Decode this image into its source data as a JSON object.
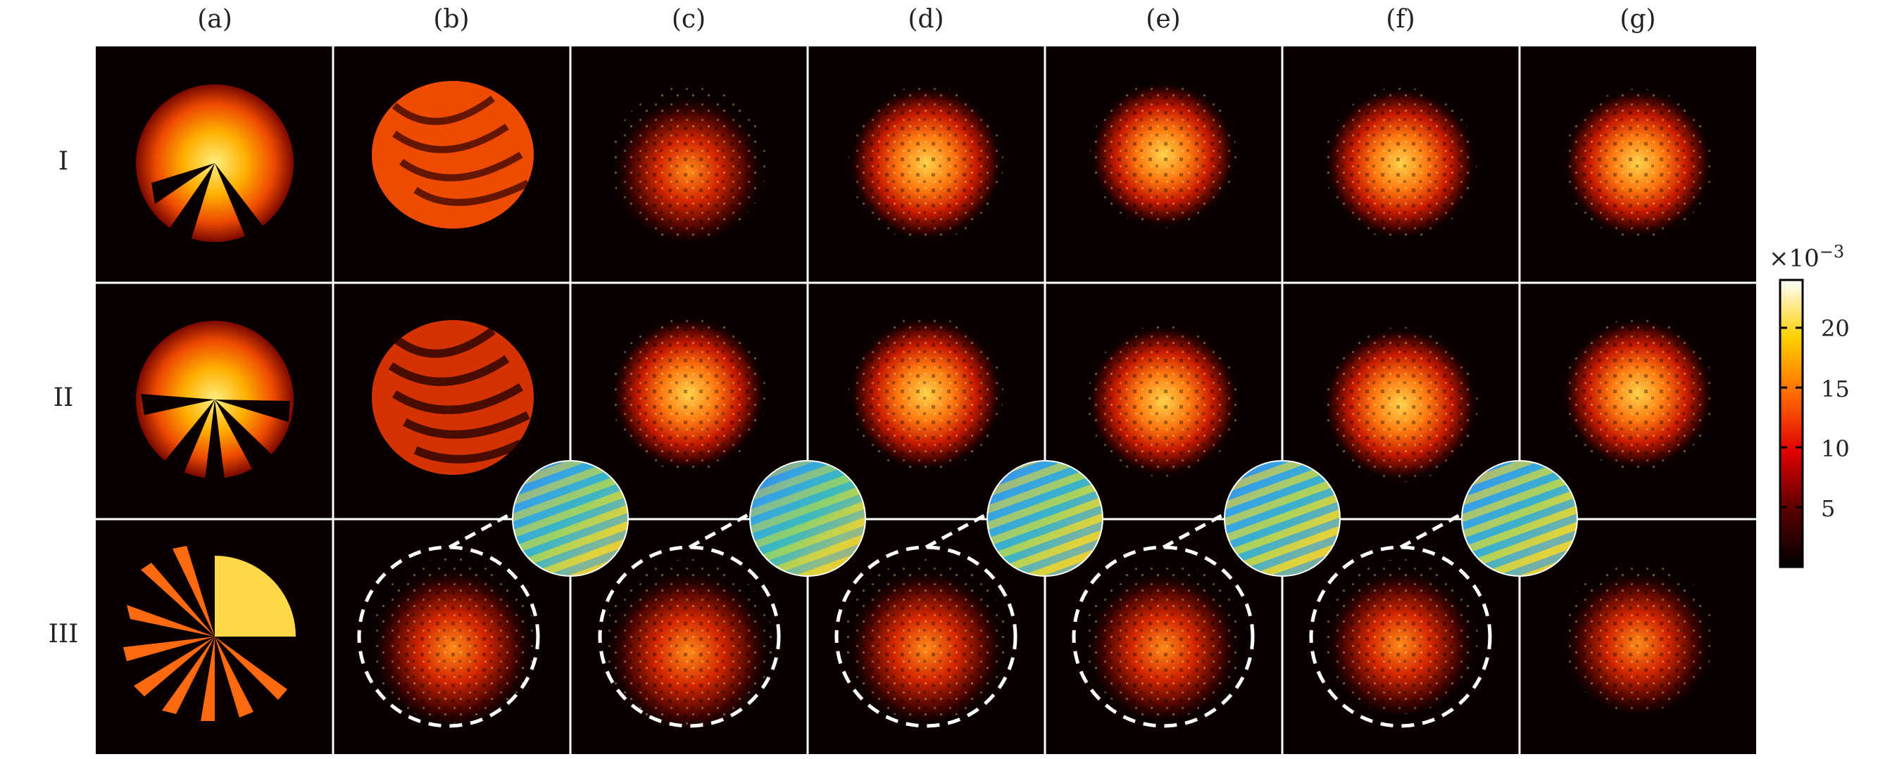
{
  "columns": [
    "(a)",
    "(b)",
    "(c)",
    "(d)",
    "(e)",
    "(f)",
    "(g)"
  ],
  "rows": [
    "I",
    "II",
    "III"
  ],
  "colorbar": {
    "exponent_base": "×10",
    "exponent_power": "−3",
    "ticks": [
      "20",
      "15",
      "10",
      "5"
    ],
    "tick_values": [
      20,
      15,
      10,
      5
    ],
    "range": [
      0,
      24
    ],
    "colormap": "hot"
  },
  "colors": {
    "grid_line": "#ffffff",
    "background": "#0a0000"
  },
  "insets": {
    "description_cols": [
      "(b)",
      "(c)",
      "(d)",
      "(e)",
      "(f)"
    ],
    "row": "III"
  }
}
